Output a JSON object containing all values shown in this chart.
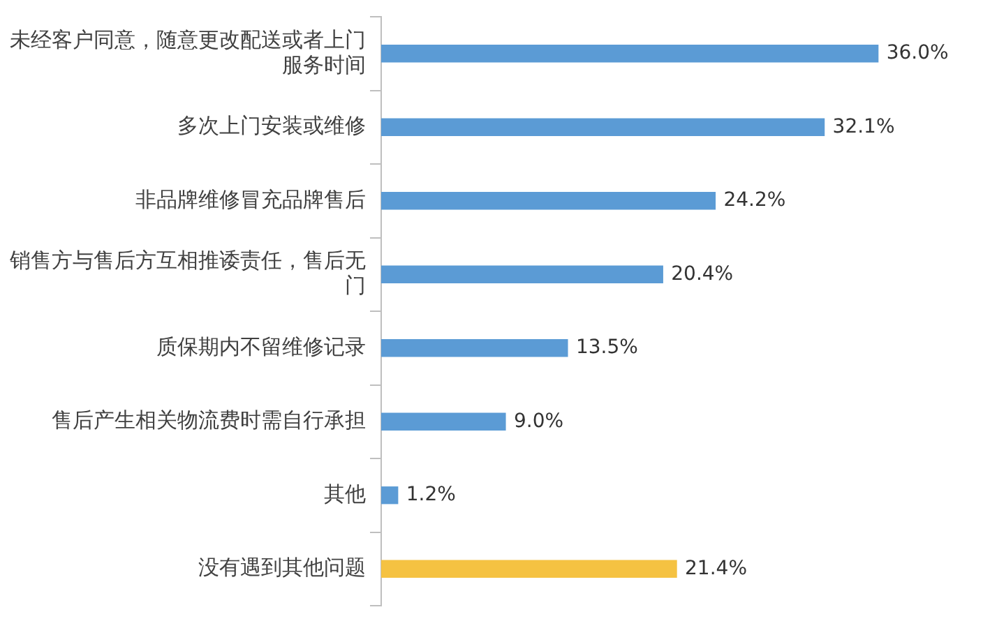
{
  "chart_data": {
    "type": "bar",
    "orientation": "horizontal",
    "categories": [
      "未经客户同意，随意更改配送或者上门服务时间",
      "多次上门安装或维修",
      "非品牌维修冒充品牌售后",
      "销售方与售后方互相推诿责任，售后无门",
      "质保期内不留维修记录",
      "售后产生相关物流费时需自行承担",
      "其他",
      "没有遇到其他问题"
    ],
    "values": [
      36.0,
      32.1,
      24.2,
      20.4,
      13.5,
      9.0,
      1.2,
      21.4
    ],
    "value_labels": [
      "36.0%",
      "32.1%",
      "24.2%",
      "20.4%",
      "13.5%",
      "9.0%",
      "1.2%",
      "21.4%"
    ],
    "colors": [
      "#5b9bd5",
      "#5b9bd5",
      "#5b9bd5",
      "#5b9bd5",
      "#5b9bd5",
      "#5b9bd5",
      "#5b9bd5",
      "#f5c242"
    ],
    "legend": false
  }
}
